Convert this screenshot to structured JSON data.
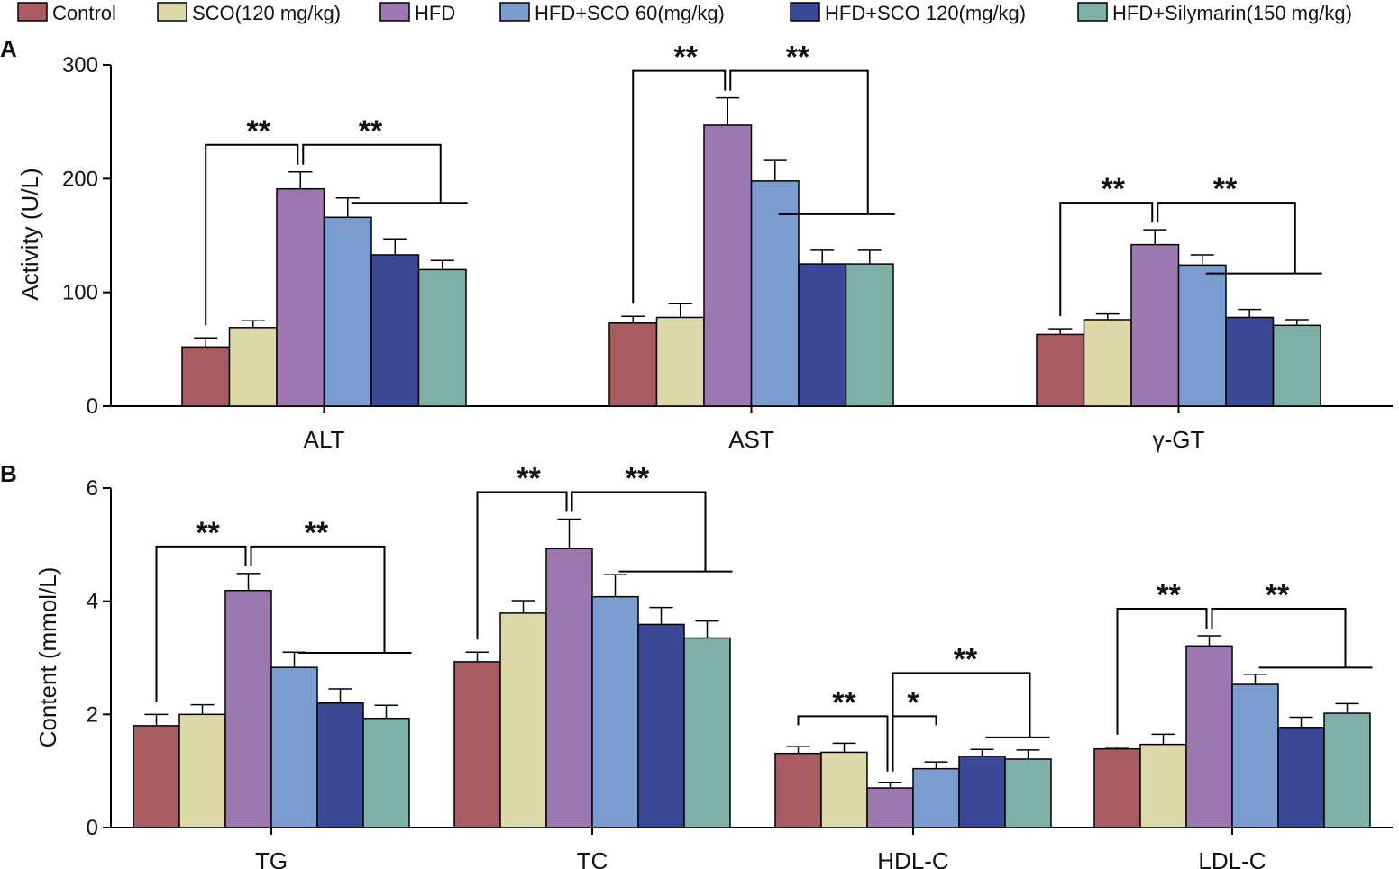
{
  "chart_data": [
    {
      "panel": "A",
      "type": "bar",
      "categories": [
        "ALT",
        "AST",
        "γ-GT"
      ],
      "ylabel": "Activity (U/L)",
      "ylim": [
        0,
        300
      ],
      "yticks": [
        0,
        100,
        200,
        300
      ],
      "series": [
        {
          "name": "Control",
          "values": [
            52,
            73,
            63
          ],
          "errors": [
            8,
            6,
            5
          ]
        },
        {
          "name": "SCO(120 mg/kg)",
          "values": [
            69,
            78,
            76
          ],
          "errors": [
            6,
            12,
            5
          ]
        },
        {
          "name": "HFD",
          "values": [
            191,
            247,
            142
          ],
          "errors": [
            15,
            24,
            13
          ]
        },
        {
          "name": "HFD+SCO 60(mg/kg)",
          "values": [
            166,
            198,
            124
          ],
          "errors": [
            17,
            18,
            9
          ]
        },
        {
          "name": "HFD+SCO 120(mg/kg)",
          "values": [
            133,
            125,
            78
          ],
          "errors": [
            14,
            12,
            7
          ]
        },
        {
          "name": "HFD+Silymarin(150 mg/kg)",
          "values": [
            120,
            125,
            71
          ],
          "errors": [
            8,
            12,
            5
          ]
        }
      ],
      "annotations": [
        {
          "category": "ALT",
          "left": "**",
          "right": "**"
        },
        {
          "category": "AST",
          "left": "**",
          "right": "**"
        },
        {
          "category": "γ-GT",
          "left": "**",
          "right": "**"
        }
      ]
    },
    {
      "panel": "B",
      "type": "bar",
      "categories": [
        "TG",
        "TC",
        "HDL-C",
        "LDL-C"
      ],
      "ylabel": "Content (mmol/L)",
      "ylim": [
        0,
        6
      ],
      "yticks": [
        0,
        2,
        4,
        6
      ],
      "series": [
        {
          "name": "Control",
          "values": [
            1.8,
            2.93,
            1.31,
            1.39
          ],
          "errors": [
            0.2,
            0.17,
            0.12,
            0.03
          ]
        },
        {
          "name": "SCO(120 mg/kg)",
          "values": [
            2.0,
            3.79,
            1.33,
            1.47
          ],
          "errors": [
            0.17,
            0.22,
            0.16,
            0.18
          ]
        },
        {
          "name": "HFD",
          "values": [
            4.19,
            4.93,
            0.7,
            3.21
          ],
          "errors": [
            0.3,
            0.52,
            0.1,
            0.18
          ]
        },
        {
          "name": "HFD+SCO 60(mg/kg)",
          "values": [
            2.83,
            4.08,
            1.04,
            2.53
          ],
          "errors": [
            0.27,
            0.39,
            0.12,
            0.18
          ]
        },
        {
          "name": "HFD+SCO 120(mg/kg)",
          "values": [
            2.2,
            3.59,
            1.26,
            1.77
          ],
          "errors": [
            0.25,
            0.3,
            0.12,
            0.18
          ]
        },
        {
          "name": "HFD+Silymarin(150 mg/kg)",
          "values": [
            1.93,
            3.35,
            1.21,
            2.02
          ],
          "errors": [
            0.23,
            0.3,
            0.16,
            0.17
          ]
        }
      ],
      "annotations": [
        {
          "category": "TG",
          "left": "**",
          "right": "**"
        },
        {
          "category": "TC",
          "left": "**",
          "right": "**"
        },
        {
          "category": "HDL-C",
          "left": "**",
          "right": "*",
          "far": "**"
        },
        {
          "category": "LDL-C",
          "left": "**",
          "right": "**"
        }
      ]
    }
  ],
  "legend": [
    {
      "label": "Control",
      "color": "#a85c62"
    },
    {
      "label": "SCO(120 mg/kg)",
      "color": "#dcd8a8"
    },
    {
      "label": "HFD",
      "color": "#9d78b0"
    },
    {
      "label": "HFD+SCO 60(mg/kg)",
      "color": "#7c9bcf"
    },
    {
      "label": "HFD+SCO 120(mg/kg)",
      "color": "#3b4898"
    },
    {
      "label": "HFD+Silymarin(150 mg/kg)",
      "color": "#7fb0a8"
    }
  ]
}
